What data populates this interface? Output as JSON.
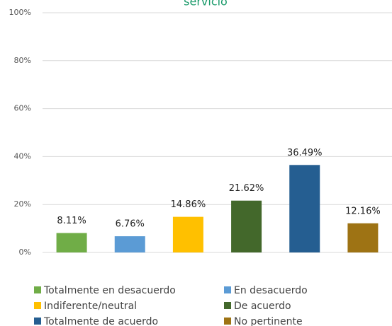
{
  "chart_data": {
    "type": "bar",
    "title": "servicio",
    "categories": [
      "Totalmente en desacuerdo",
      "En desacuerdo",
      "Indiferente/neutral",
      "De acuerdo",
      "Totalmente de acuerdo",
      "No pertinente"
    ],
    "values": [
      8.11,
      6.76,
      14.86,
      21.62,
      36.49,
      12.16
    ],
    "value_labels": [
      "8.11%",
      "6.76%",
      "14.86%",
      "21.62%",
      "36.49%",
      "12.16%"
    ],
    "colors": [
      "#70ad47",
      "#5b9bd5",
      "#ffc000",
      "#43682b",
      "#255e91",
      "#9e7314"
    ],
    "ylim": [
      0,
      100
    ],
    "yticks": [
      {
        "value": 0,
        "label": "0%"
      },
      {
        "value": 20,
        "label": "20%"
      },
      {
        "value": 40,
        "label": "40%"
      },
      {
        "value": 60,
        "label": "60%"
      },
      {
        "value": 80,
        "label": "80%"
      },
      {
        "value": 100,
        "label": "100%"
      }
    ],
    "grid": true,
    "legend": "bottom"
  }
}
